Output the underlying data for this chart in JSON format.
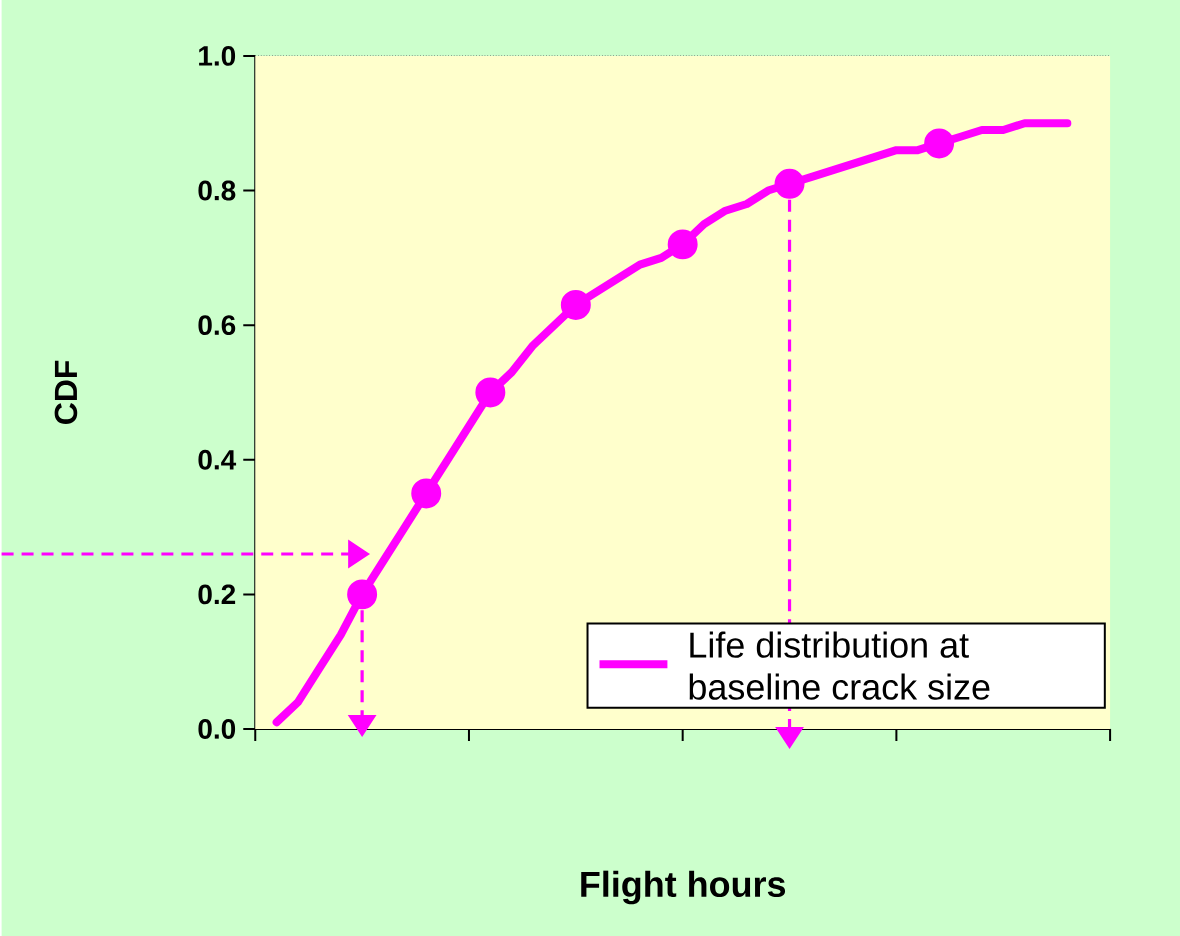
{
  "chart_data": {
    "type": "line",
    "xlabel": "Flight hours",
    "ylabel": "CDF",
    "categories": [
      null,
      null,
      null,
      null,
      null,
      null,
      null,
      null,
      null,
      null,
      null,
      null,
      null,
      null,
      null,
      null,
      null,
      null,
      null,
      null,
      null,
      null,
      null,
      null,
      null,
      null,
      null,
      null,
      null,
      null,
      null,
      null,
      null,
      null,
      null,
      null,
      null,
      null,
      null,
      null,
      null
    ],
    "ylim": [
      0,
      1
    ],
    "yticks": [
      {
        "value": 0,
        "label": "0.0"
      },
      {
        "value": 0.2,
        "label": "0.2"
      },
      {
        "value": 0.4,
        "label": "0.4"
      },
      {
        "value": 0.6,
        "label": "0.6"
      },
      {
        "value": 0.8,
        "label": "0.8"
      },
      {
        "value": 1,
        "label": "1.0"
      }
    ],
    "tick_labels": "y",
    "grid": "y",
    "legend": "bottom right",
    "series": [
      {
        "name": "Life distribution at baseline crack size",
        "color": "#ff00ff",
        "line_style": "solid",
        "values": [
          null,
          0.01,
          0.04,
          0.09,
          0.14,
          0.2,
          0.25,
          0.3,
          0.35,
          0.4,
          0.45,
          0.5,
          0.53,
          0.57,
          0.6,
          0.63,
          0.65,
          0.67,
          0.69,
          0.7,
          0.72,
          0.75,
          0.77,
          0.78,
          0.8,
          0.81,
          0.82,
          0.83,
          0.84,
          0.85,
          0.86,
          0.86,
          0.87,
          0.88,
          0.89,
          0.89,
          0.9,
          0.9,
          0.9,
          null,
          null
        ]
      },
      {
        "type": "scatter",
        "color": "#ff00ff",
        "marker": "circle",
        "values": [
          null,
          null,
          null,
          null,
          null,
          0.2,
          null,
          null,
          0.35,
          null,
          null,
          0.5,
          null,
          null,
          null,
          0.63,
          null,
          null,
          null,
          null,
          0.72,
          null,
          null,
          null,
          null,
          0.81,
          null,
          null,
          null,
          null,
          null,
          null,
          0.87,
          null,
          null,
          null,
          null,
          null,
          null,
          null,
          null
        ]
      }
    ]
  }
}
